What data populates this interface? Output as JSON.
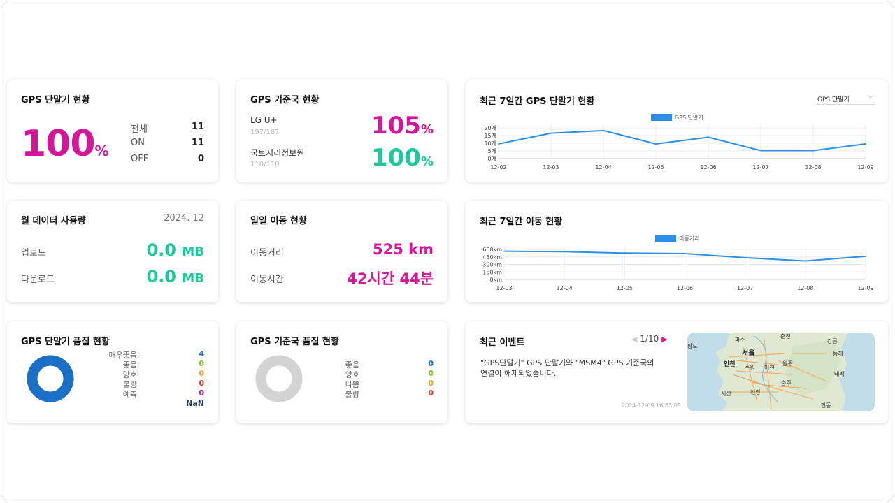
{
  "gps_terminal": {
    "title": "GPS 단말기 현황",
    "percent": "100",
    "unit": "%",
    "rows": [
      {
        "label": "전체",
        "value": "11"
      },
      {
        "label": "ON",
        "value": "11"
      },
      {
        "label": "OFF",
        "value": "0"
      }
    ]
  },
  "gps_base": {
    "title": "GPS 기준국 현황",
    "items": [
      {
        "name": "LG U+",
        "sub": "197/187",
        "percent": "105",
        "unit": "%"
      },
      {
        "name": "국토지리정보원",
        "sub": "110/110",
        "percent": "100",
        "unit": "%"
      }
    ]
  },
  "weekly_gps": {
    "title": "최근 7일간 GPS 단말기 현황",
    "dropdown": "GPS 단말기",
    "chart_data": {
      "type": "line",
      "legend": "GPS 단말기",
      "categories": [
        "12-02",
        "12-03",
        "12-04",
        "12-05",
        "12-06",
        "12-07",
        "12-08",
        "12-09"
      ],
      "values": [
        11,
        19,
        21,
        11,
        16,
        6,
        6,
        11
      ],
      "yticks": [
        "20개",
        "15개",
        "10개",
        "5개",
        "0개"
      ],
      "ylim": [
        0,
        23
      ],
      "color": "#2b8fe8"
    }
  },
  "monthly_data": {
    "title": "월 데이터 사용량",
    "date": "2024. 12",
    "rows": [
      {
        "label": "업로드",
        "value": "0.0",
        "unit": "MB"
      },
      {
        "label": "다운로드",
        "value": "0.0",
        "unit": "MB"
      }
    ]
  },
  "daily_move": {
    "title": "일일 이동 현황",
    "rows": [
      {
        "label": "이동거리",
        "value": "525 km"
      },
      {
        "label": "이동시간",
        "value": "42시간 44분"
      }
    ]
  },
  "weekly_move": {
    "title": "최근 7일간 이동 현황",
    "chart_data": {
      "type": "line",
      "legend": "이동거리",
      "categories": [
        "12-03",
        "12-04",
        "12-05",
        "12-06",
        "12-07",
        "12-08",
        "12-09"
      ],
      "values": [
        610,
        600,
        570,
        560,
        470,
        400,
        500
      ],
      "yticks": [
        "600km",
        "450km",
        "300km",
        "150km",
        "0km"
      ],
      "ylim": [
        0,
        650
      ],
      "color": "#2b8fe8"
    }
  },
  "gps_quality": {
    "title": "GPS 단말기 품질 현황",
    "items": [
      {
        "label": "매우좋음",
        "value": "4",
        "color": "#1a6fc4"
      },
      {
        "label": "좋음",
        "value": "0",
        "color": "#8bbf2e"
      },
      {
        "label": "양호",
        "value": "0",
        "color": "#e7a21c"
      },
      {
        "label": "불량",
        "value": "0",
        "color": "#e23a2a"
      },
      {
        "label": "예측",
        "value": "0",
        "color": "#c8147a"
      }
    ],
    "total": "NaN",
    "donut_color": "#1a6fc4"
  },
  "base_quality": {
    "title": "GPS 기준국 품질 현황",
    "items": [
      {
        "label": "좋음",
        "value": "0",
        "color": "#1a6fc4"
      },
      {
        "label": "양호",
        "value": "0",
        "color": "#8bbf2e"
      },
      {
        "label": "나쁨",
        "value": "0",
        "color": "#e7a21c"
      },
      {
        "label": "불량",
        "value": "0",
        "color": "#e23a2a"
      }
    ],
    "donut_color": "#d3d3d3"
  },
  "events": {
    "title": "최근 이벤트",
    "pager": "1/10",
    "message_line1": "\"GPS단말기\" GPS 단말기와 \"MSM4\" GPS 기준국의",
    "message_line2": "연결이 해제되었습니다.",
    "timestamp": "2024-12-09 16:53:09",
    "map_labels": {
      "paju": "파주",
      "chuncheon": "춘천",
      "gangneung": "강릉",
      "seoul": "서울",
      "incheon": "인천",
      "suwon": "수원",
      "icheon": "이천",
      "wonju": "원주",
      "donghae": "동해",
      "taebaek": "태백",
      "chungju": "충주",
      "seosan": "서산",
      "cheonan": "천안",
      "andong": "안동",
      "island": "황도"
    }
  }
}
